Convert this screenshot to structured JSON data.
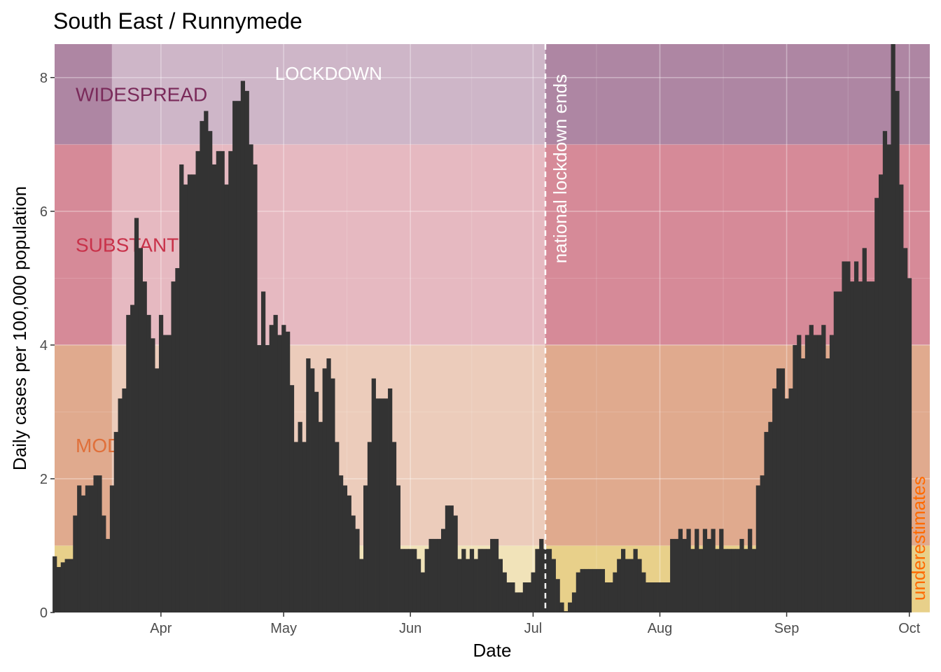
{
  "chart_data": {
    "type": "bar",
    "title": "South East / Runnymede",
    "xlabel": "Date",
    "ylabel": "Daily cases per 100,000 population",
    "x_start": "2020-03-06",
    "ylim": [
      0,
      8.5
    ],
    "xlim": [
      "2020-03-06",
      "2020-10-06"
    ],
    "y_ticks": [
      0,
      2,
      4,
      6,
      8
    ],
    "x_ticks": [
      {
        "date": "2020-04-01",
        "label": "Apr"
      },
      {
        "date": "2020-05-01",
        "label": "May"
      },
      {
        "date": "2020-06-01",
        "label": "Jun"
      },
      {
        "date": "2020-07-01",
        "label": "Jul"
      },
      {
        "date": "2020-08-01",
        "label": "Aug"
      },
      {
        "date": "2020-09-01",
        "label": "Sep"
      },
      {
        "date": "2020-10-01",
        "label": "Oct"
      }
    ],
    "bands": [
      {
        "label": "",
        "from": 0,
        "to": 1,
        "color": "#e8d08a"
      },
      {
        "label": "MODERATE",
        "from": 1,
        "to": 4,
        "color": "#e0aa8e"
      },
      {
        "label": "SUBSTANTIAL",
        "from": 4,
        "to": 7,
        "color": "#d68a98"
      },
      {
        "label": "WIDESPREAD",
        "from": 7,
        "to": 8.5,
        "color": "#ae86a3"
      }
    ],
    "band_label_colors": {
      "WIDESPREAD": "#7a2a5a",
      "SUBSTANTIAL": "#c8324a",
      "MODERATE": "#e0703a"
    },
    "lockdown": {
      "label": "LOCKDOWN",
      "from": "2020-03-20",
      "to": "2020-07-04"
    },
    "vline": {
      "date": "2020-07-04",
      "label": "national lockdown ends"
    },
    "underestimates_label": "underestimates",
    "bar_color": "#333333",
    "values": [
      0.84,
      0.68,
      0.75,
      0.8,
      0.8,
      1.45,
      1.9,
      1.75,
      1.9,
      1.9,
      2.05,
      2.05,
      1.45,
      1.1,
      1.9,
      2.7,
      3.2,
      3.35,
      4.45,
      4.6,
      5.9,
      5.45,
      4.95,
      4.45,
      4.1,
      3.65,
      4.45,
      4.15,
      4.15,
      4.95,
      5.15,
      6.7,
      6.4,
      6.55,
      6.55,
      6.9,
      7.35,
      7.5,
      7.2,
      6.7,
      6.9,
      6.9,
      6.4,
      6.9,
      7.65,
      7.65,
      7.95,
      7.8,
      7.0,
      6.7,
      4.0,
      4.8,
      4.0,
      4.3,
      4.45,
      4.15,
      4.3,
      4.2,
      3.4,
      2.55,
      2.85,
      2.55,
      3.8,
      3.65,
      3.3,
      2.85,
      3.65,
      3.8,
      3.5,
      2.55,
      2.05,
      1.9,
      1.75,
      1.45,
      1.25,
      0.8,
      1.9,
      2.55,
      3.5,
      3.2,
      3.2,
      3.2,
      3.35,
      2.55,
      1.9,
      0.95,
      0.95,
      0.95,
      0.95,
      0.8,
      0.6,
      0.95,
      1.1,
      1.1,
      1.1,
      1.25,
      1.6,
      1.6,
      1.45,
      0.8,
      0.95,
      0.8,
      0.95,
      0.8,
      0.95,
      0.95,
      0.95,
      1.1,
      1.1,
      0.8,
      0.6,
      0.45,
      0.45,
      0.3,
      0.3,
      0.45,
      0.45,
      0.6,
      0.95,
      1.1,
      0.95,
      0.95,
      0.8,
      0.5,
      0.15,
      0.02,
      0.15,
      0.3,
      0.6,
      0.65,
      0.65,
      0.65,
      0.65,
      0.65,
      0.65,
      0.45,
      0.45,
      0.6,
      0.8,
      0.95,
      0.8,
      0.8,
      0.95,
      0.8,
      0.6,
      0.45,
      0.45,
      0.45,
      0.45,
      0.45,
      0.45,
      1.1,
      1.1,
      1.25,
      1.1,
      1.25,
      0.95,
      1.25,
      0.95,
      1.25,
      1.1,
      1.25,
      0.95,
      1.25,
      0.95,
      0.95,
      0.95,
      0.95,
      1.1,
      0.95,
      1.25,
      0.95,
      1.9,
      2.05,
      2.7,
      2.85,
      3.35,
      3.65,
      3.65,
      3.2,
      3.35,
      4.0,
      4.15,
      3.8,
      4.15,
      4.3,
      4.15,
      4.15,
      4.3,
      3.8,
      4.15,
      4.8,
      4.8,
      5.25,
      5.25,
      4.95,
      5.25,
      4.95,
      5.45,
      4.95,
      4.95,
      6.2,
      6.55,
      7.2,
      7.0,
      8.5,
      7.8,
      6.4,
      5.45,
      5.0
    ]
  }
}
